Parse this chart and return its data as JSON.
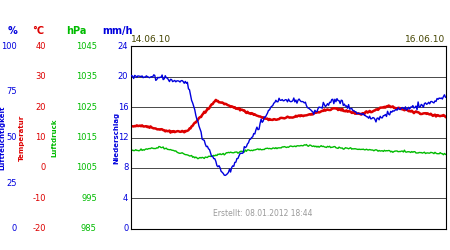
{
  "date_left": "14.06.10",
  "date_right": "16.06.10",
  "footer": "Erstellt: 08.01.2012 18:44",
  "bg_color": "#ffffff",
  "plot_bg": "#ffffff",
  "axes_labels": {
    "humidity": "Luftfeuchtigkeit",
    "temperature": "Temperatur",
    "pressure": "Luftdruck",
    "precipitation": "Niederschlag"
  },
  "units": {
    "humidity": "%",
    "temperature": "°C",
    "pressure": "hPa",
    "precipitation": "mm/h"
  },
  "colors": {
    "humidity": "#0000dd",
    "temperature": "#dd0000",
    "pressure": "#00bb00",
    "precipitation": "#0000dd"
  },
  "humidity_ticks": [
    0,
    25,
    50,
    75,
    100
  ],
  "temp_ticks": [
    -20,
    -10,
    0,
    10,
    20,
    30,
    40
  ],
  "pressure_ticks": [
    985,
    995,
    1005,
    1015,
    1025,
    1035,
    1045
  ],
  "precip_ticks": [
    0,
    4,
    8,
    12,
    16,
    20,
    24
  ],
  "n_points": 300
}
